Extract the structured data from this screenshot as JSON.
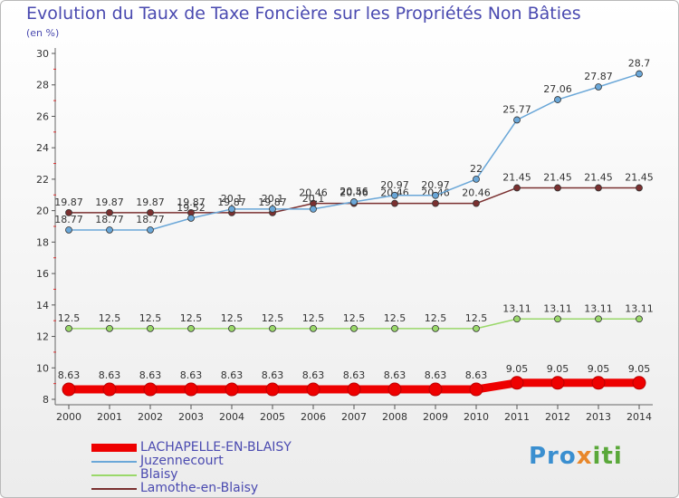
{
  "header": {
    "title": "Evolution du Taux de Taxe Foncière sur les Propriétés Non Bâties",
    "unit": "(en %)"
  },
  "brand": {
    "part1": "Pro",
    "part2": "x",
    "part3": "iti"
  },
  "chart_data": {
    "type": "line",
    "title": "Evolution du Taux de Taxe Foncière sur les Propriétés Non Bâties",
    "ylabel": "(en %)",
    "xlabel": "",
    "categories": [
      "2000",
      "2001",
      "2002",
      "2003",
      "2004",
      "2005",
      "2006",
      "2007",
      "2008",
      "2009",
      "2010",
      "2011",
      "2012",
      "2013",
      "2014"
    ],
    "ylim": [
      8,
      30
    ],
    "yticks": [
      8,
      10,
      12,
      14,
      16,
      18,
      20,
      22,
      24,
      26,
      28,
      30
    ],
    "grid": false,
    "legend_position": "bottom-left",
    "series": [
      {
        "name": "LACHAPELLE-EN-BLAISY",
        "color": "#ee0000",
        "values": [
          8.63,
          8.63,
          8.63,
          8.63,
          8.63,
          8.63,
          8.63,
          8.63,
          8.63,
          8.63,
          8.63,
          9.05,
          9.05,
          9.05,
          9.05
        ],
        "labels": [
          "8.63",
          "8.63",
          "8.63",
          "8.63",
          "8.63",
          "8.63",
          "8.63",
          "8.63",
          "8.63",
          "8.63",
          "8.63",
          "9.05",
          "9.05",
          "9.05",
          "9.05"
        ]
      },
      {
        "name": "Juzennecourt",
        "color": "#6aa7d8",
        "values": [
          18.77,
          18.77,
          18.77,
          19.52,
          20.1,
          20.1,
          20.1,
          20.56,
          20.97,
          20.97,
          22,
          25.77,
          27.06,
          27.87,
          28.7
        ],
        "labels": [
          "18.77",
          "18.77",
          "18.77",
          "19.52",
          "20.1",
          "20.1",
          "20.1",
          "20.56",
          "20.97",
          "20.97",
          "22",
          "25.77",
          "27.06",
          "27.87",
          "28.7"
        ]
      },
      {
        "name": "Blaisy",
        "color": "#9ad86a",
        "values": [
          12.5,
          12.5,
          12.5,
          12.5,
          12.5,
          12.5,
          12.5,
          12.5,
          12.5,
          12.5,
          12.5,
          13.11,
          13.11,
          13.11,
          13.11
        ],
        "labels": [
          "12.5",
          "12.5",
          "12.5",
          "12.5",
          "12.5",
          "12.5",
          "12.5",
          "12.5",
          "12.5",
          "12.5",
          "12.5",
          "13.11",
          "13.11",
          "13.11",
          "13.11"
        ]
      },
      {
        "name": "Lamothe-en-Blaisy",
        "color": "#7a3030",
        "values": [
          19.87,
          19.87,
          19.87,
          19.87,
          19.87,
          19.87,
          20.46,
          20.46,
          20.46,
          20.46,
          20.46,
          21.45,
          21.45,
          21.45,
          21.45
        ],
        "labels": [
          "19.87",
          "19.87",
          "19.87",
          "19.87",
          "19.87",
          "19.87",
          "20.46",
          "20.46",
          "20.46",
          "20.46",
          "20.46",
          "21.45",
          "21.45",
          "21.45",
          "21.45"
        ]
      }
    ]
  }
}
